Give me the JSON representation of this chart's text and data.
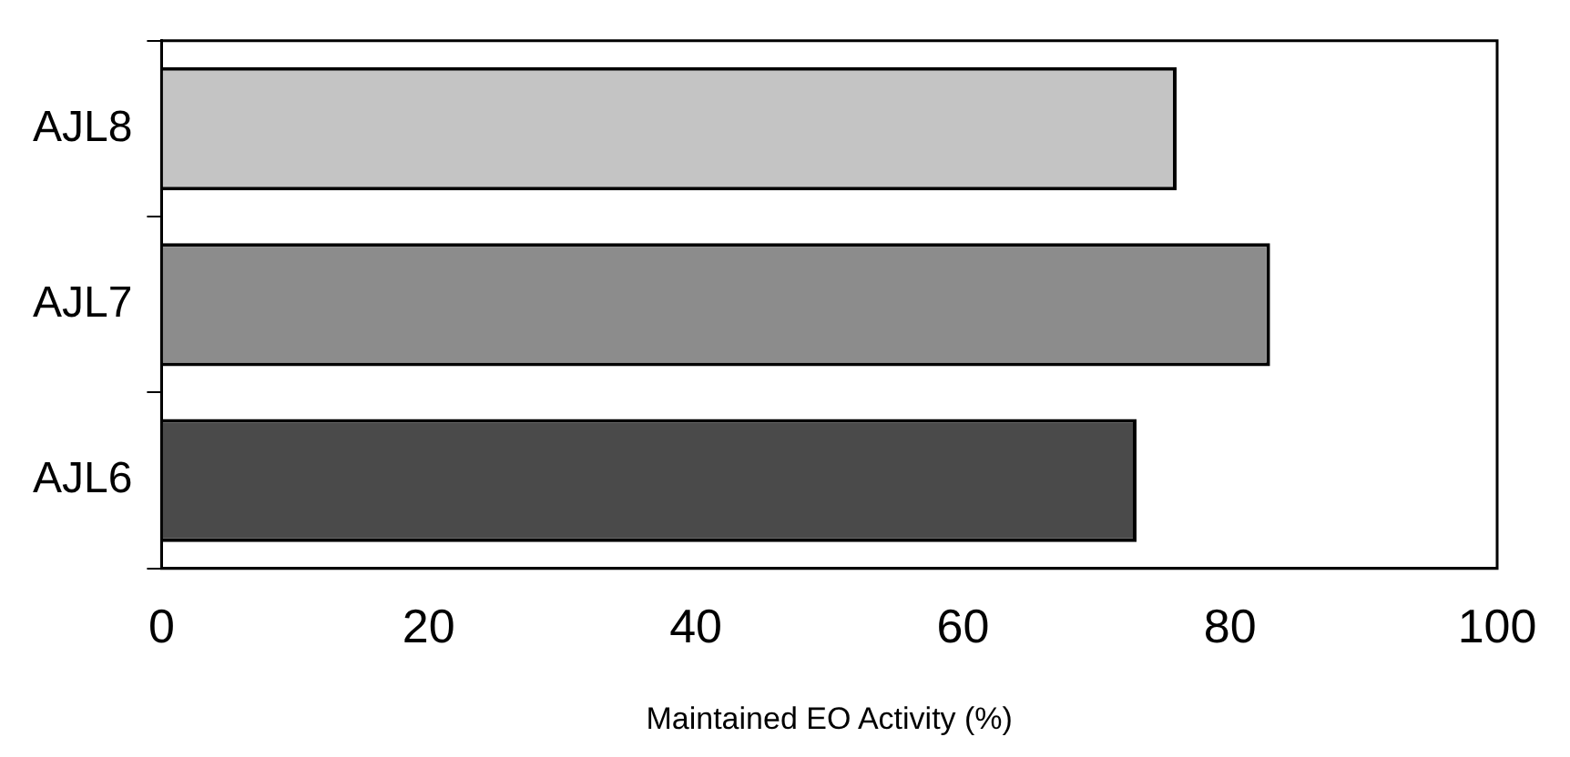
{
  "chart_data": {
    "type": "bar",
    "orientation": "horizontal",
    "categories": [
      "AJL8",
      "AJL7",
      "AJL6"
    ],
    "values": [
      76,
      83,
      73
    ],
    "colors": [
      "#c4c4c4",
      "#8c8c8c",
      "#4a4a4a"
    ],
    "xlabel": "Maintained EO Activity (%)",
    "xlim": [
      0,
      100
    ],
    "xticks": [
      0,
      20,
      40,
      60,
      80,
      100
    ],
    "grid": false,
    "legend": false
  }
}
